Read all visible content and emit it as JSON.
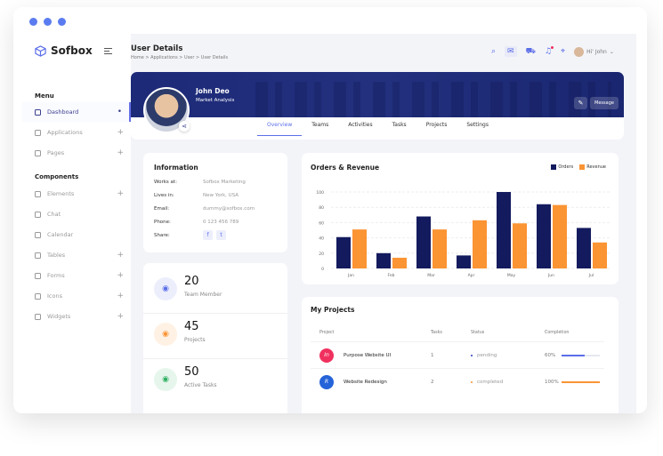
{
  "brand": {
    "name": "Sofbox"
  },
  "colors": {
    "accent": "#5b6ee8",
    "navy": "#131b5e",
    "orange": "#fb9433"
  },
  "sidebar": {
    "menu_title": "Menu",
    "components_title": "Components",
    "menu_items": [
      {
        "label": "Dashboard",
        "active": true,
        "suffix": "•"
      },
      {
        "label": "Applications",
        "suffix": "+"
      },
      {
        "label": "Pages",
        "suffix": "+"
      }
    ],
    "component_items": [
      {
        "label": "Elements",
        "suffix": "+"
      },
      {
        "label": "Chat",
        "suffix": ""
      },
      {
        "label": "Calendar",
        "suffix": ""
      },
      {
        "label": "Tables",
        "suffix": "+"
      },
      {
        "label": "Forms",
        "suffix": "+"
      },
      {
        "label": "Icons",
        "suffix": "+"
      },
      {
        "label": "Widgets",
        "suffix": "+"
      }
    ]
  },
  "header": {
    "title": "User Details",
    "breadcrumb": "Home > Applications > User > User Details",
    "user_greeting": "Hi' John"
  },
  "profile": {
    "name": "John Deo",
    "role": "Market Analysis",
    "message_label": "Message",
    "tabs": [
      "Overview",
      "Teams",
      "Activities",
      "Tasks",
      "Projects",
      "Settings"
    ],
    "active_tab": "Overview"
  },
  "information": {
    "title": "Information",
    "rows": [
      {
        "label": "Works at:",
        "value": "Sofbox Marketing"
      },
      {
        "label": "Lives in:",
        "value": "New York, USA"
      },
      {
        "label": "Email:",
        "value": "dummy@sofbox.com"
      },
      {
        "label": "Phone:",
        "value": "0 123 456 789"
      }
    ],
    "share_label": "Share:"
  },
  "stats": [
    {
      "value": "20",
      "label": "Team Member",
      "color": "#5b6ee8",
      "bg": "#eceefc"
    },
    {
      "value": "45",
      "label": "Projects",
      "color": "#fb9433",
      "bg": "#fff1e4"
    },
    {
      "value": "50",
      "label": "Active Tasks",
      "color": "#2fb061",
      "bg": "#e6f6ec"
    }
  ],
  "chart_data": {
    "type": "bar",
    "title": "Orders & Revenue",
    "categories": [
      "Jan",
      "Feb",
      "Mar",
      "Apr",
      "May",
      "Jun",
      "Jul"
    ],
    "series": [
      {
        "name": "Orders",
        "color": "#131b5e",
        "values": [
          41,
          20,
          68,
          17,
          100,
          84,
          53
        ]
      },
      {
        "name": "Revenue",
        "color": "#fb9433",
        "values": [
          51,
          14,
          51,
          63,
          59,
          83,
          34
        ]
      }
    ],
    "ylim": [
      0,
      100
    ],
    "yticks": [
      0,
      20,
      40,
      60,
      80,
      100
    ],
    "grid": true,
    "legend": "top-right"
  },
  "projects": {
    "title": "My Projects",
    "columns": [
      "Project",
      "Tasks",
      "Status",
      "Completion"
    ],
    "rows": [
      {
        "name": "Purpose Website UI",
        "tasks": "1",
        "status": "pending",
        "status_color": "#2b3bc9",
        "completion": "60%",
        "progress": 60,
        "bar_color": "#5b6ee8",
        "icon_bg": "#f0305e",
        "icon_text": "In"
      },
      {
        "name": "Website Redesign",
        "tasks": "2",
        "status": "completed",
        "status_color": "#fb9433",
        "completion": "100%",
        "progress": 100,
        "bar_color": "#fb9433",
        "icon_bg": "#2563d8",
        "icon_text": "R"
      }
    ]
  }
}
